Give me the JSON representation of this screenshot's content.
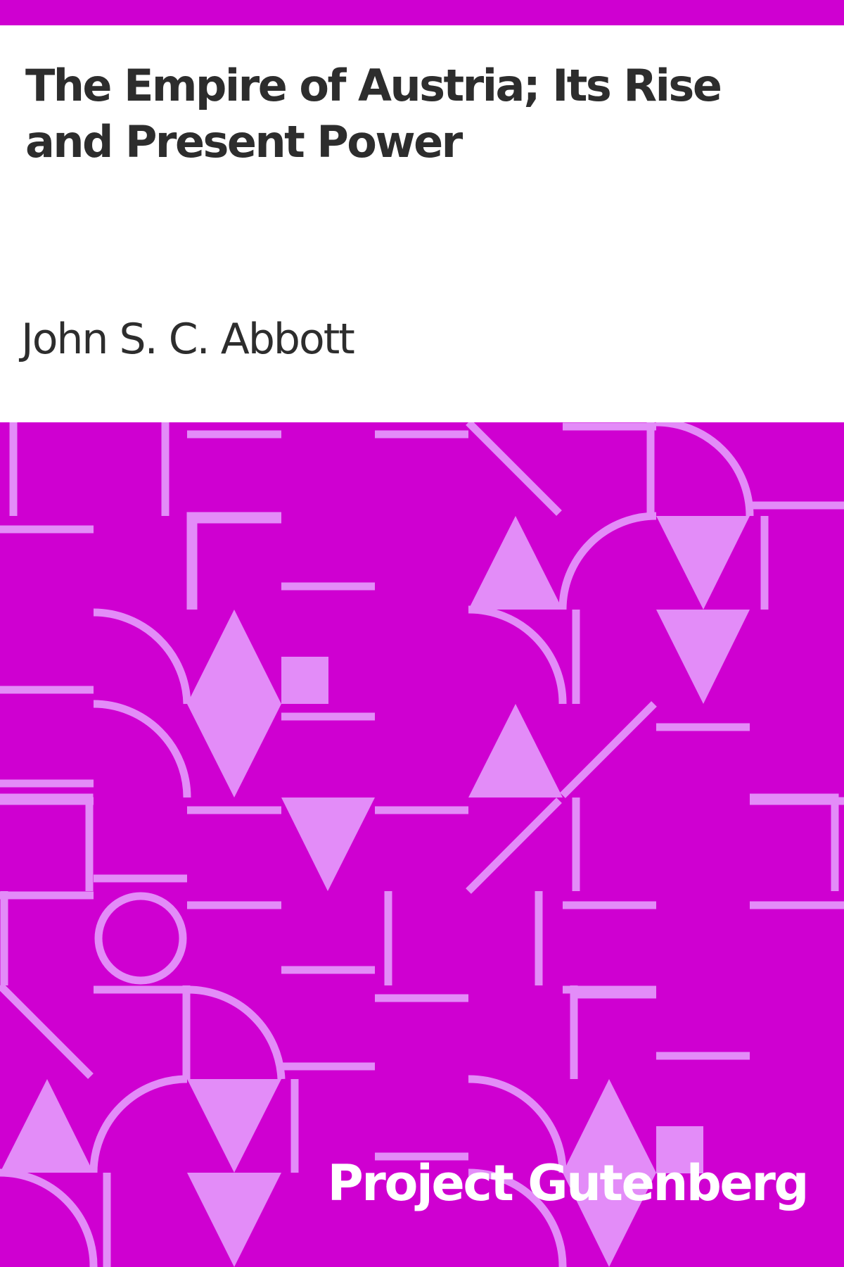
{
  "book": {
    "title": "The Empire of Austria; Its Rise and Present Power",
    "author": "John S. C. Abbott"
  },
  "publisher": "Project Gutenberg",
  "colors": {
    "background": "#cf00d1",
    "pattern": "#e38cf8",
    "title_text": "#2d2d2d",
    "publisher_text": "#ffffff"
  }
}
